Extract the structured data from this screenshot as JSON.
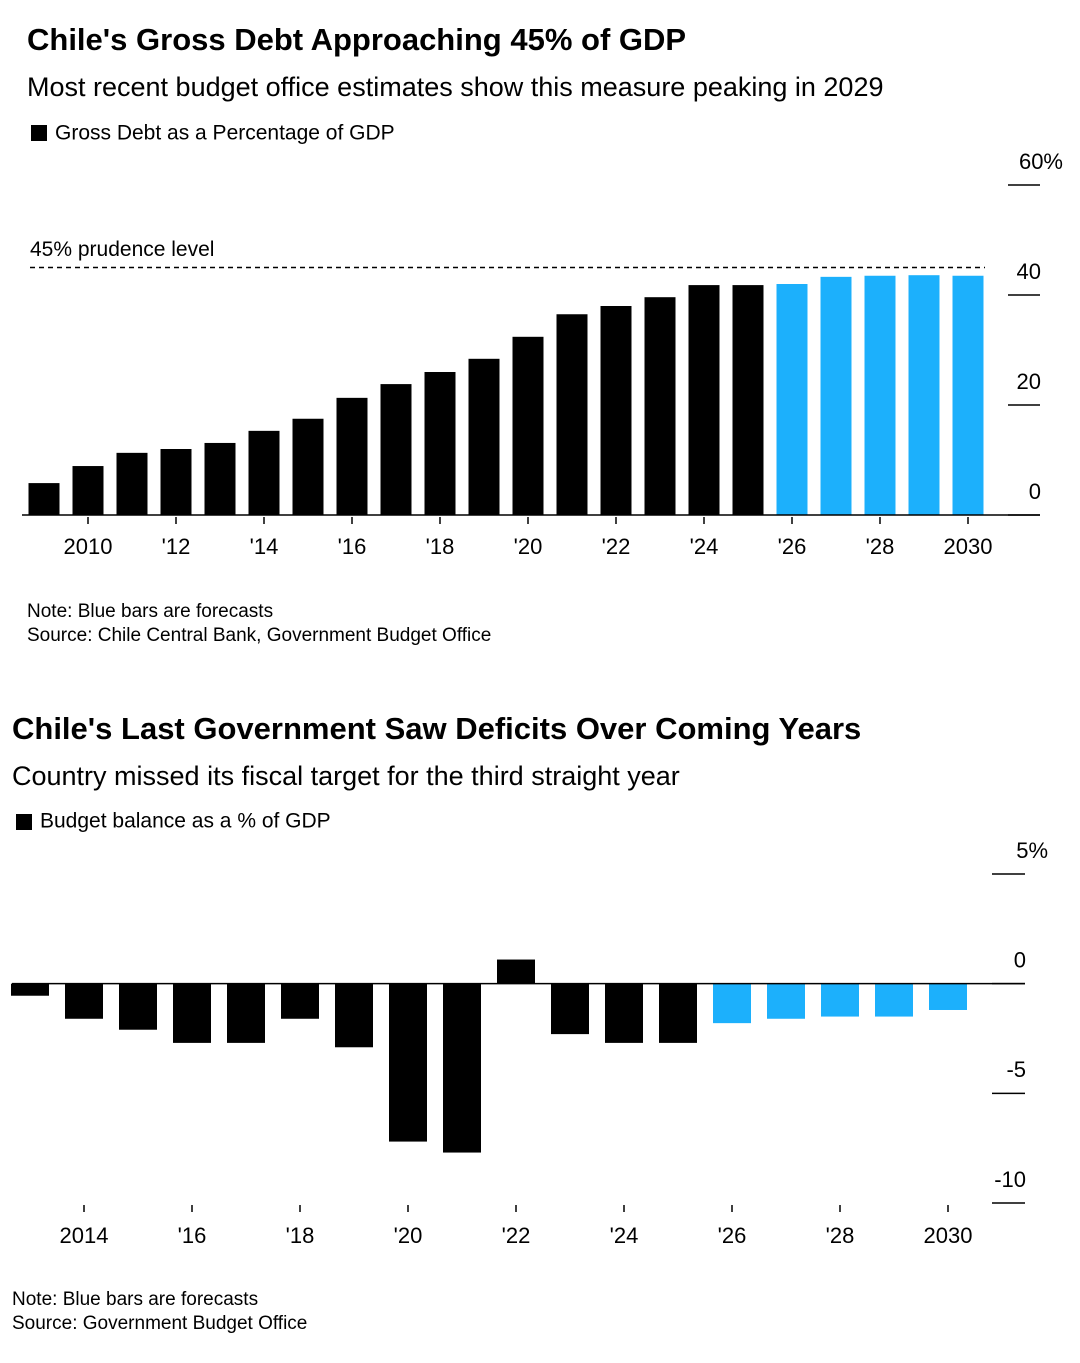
{
  "chart_data": [
    {
      "type": "bar",
      "title": "Chile's Gross Debt Approaching 45% of GDP",
      "subtitle": "Most recent budget office estimates show this measure peaking in 2029",
      "legend": "Gross Debt as a Percentage of GDP",
      "categories": [
        null,
        "2010",
        null,
        "'12",
        null,
        "'14",
        null,
        "'16",
        null,
        "'18",
        null,
        "'20",
        null,
        "'22",
        null,
        "'24",
        null,
        "'26",
        null,
        "'28",
        null,
        "2030"
      ],
      "values": [
        5.8,
        8.9,
        11.3,
        12.0,
        13.1,
        15.3,
        17.5,
        21.3,
        23.8,
        26.0,
        28.4,
        32.4,
        36.5,
        38.0,
        39.6,
        41.8,
        41.8,
        42.0,
        43.3,
        43.5,
        43.6,
        43.5
      ],
      "colors": [
        "#000000",
        "#000000",
        "#000000",
        "#000000",
        "#000000",
        "#000000",
        "#000000",
        "#000000",
        "#000000",
        "#000000",
        "#000000",
        "#000000",
        "#000000",
        "#000000",
        "#000000",
        "#000000",
        "#000000",
        "#1cb0fc",
        "#1cb0fc",
        "#1cb0fc",
        "#1cb0fc",
        "#1cb0fc"
      ],
      "ylim": [
        0,
        60
      ],
      "yticks": [
        0,
        20,
        40,
        {
          "value": 60,
          "label": "60%"
        }
      ],
      "reference_line": {
        "value": 45,
        "label": "45% prudence level"
      },
      "note": "Note: Blue bars are forecasts",
      "source": "Source: Chile Central Bank, Government Budget Office"
    },
    {
      "type": "bar",
      "title": "Chile's Last Government Saw Deficits Over Coming Years",
      "subtitle": "Country missed its fiscal target for the third straight year",
      "legend": "Budget balance as a % of GDP",
      "categories": [
        null,
        "2014",
        null,
        "'16",
        null,
        "'18",
        null,
        "'20",
        null,
        "'22",
        null,
        "'24",
        null,
        "'26",
        null,
        "'28",
        null,
        "2030"
      ],
      "values": [
        -0.55,
        -1.6,
        -2.1,
        -2.7,
        -2.7,
        -1.6,
        -2.9,
        -7.2,
        -7.7,
        1.1,
        -2.3,
        -2.7,
        -2.7,
        -1.8,
        -1.6,
        -1.5,
        -1.5,
        -1.2
      ],
      "colors": [
        "#000000",
        "#000000",
        "#000000",
        "#000000",
        "#000000",
        "#000000",
        "#000000",
        "#000000",
        "#000000",
        "#000000",
        "#000000",
        "#000000",
        "#000000",
        "#1cb0fc",
        "#1cb0fc",
        "#1cb0fc",
        "#1cb0fc",
        "#1cb0fc"
      ],
      "ylim": [
        -10,
        5
      ],
      "yticks": [
        -10,
        -5,
        0,
        {
          "value": 5,
          "label": "5%"
        }
      ],
      "note": "Note: Blue bars are forecasts",
      "source": "Source: Government Budget Office"
    }
  ]
}
